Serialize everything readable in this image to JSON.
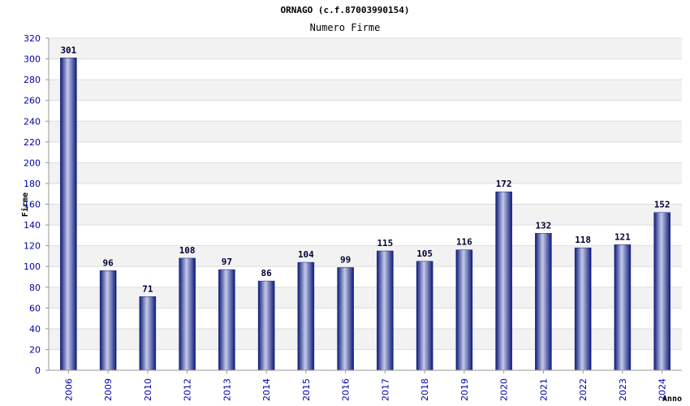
{
  "chart_data": {
    "type": "bar",
    "title": "ORNAGO (c.f.87003990154)",
    "subtitle": "Numero Firme",
    "xlabel": "Anno",
    "ylabel": "Firme",
    "ylim": [
      0,
      320
    ],
    "ytick_step": 20,
    "grid": true,
    "bar_color": "#1a237e",
    "bar_highlight": "#c5cae9",
    "band_color": "#f2f2f2",
    "categories": [
      "2006",
      "2009",
      "2010",
      "2012",
      "2013",
      "2014",
      "2015",
      "2016",
      "2017",
      "2018",
      "2019",
      "2020",
      "2021",
      "2022",
      "2023",
      "2024"
    ],
    "values": [
      301,
      96,
      71,
      108,
      97,
      86,
      104,
      99,
      115,
      105,
      116,
      172,
      132,
      118,
      121,
      152
    ]
  }
}
